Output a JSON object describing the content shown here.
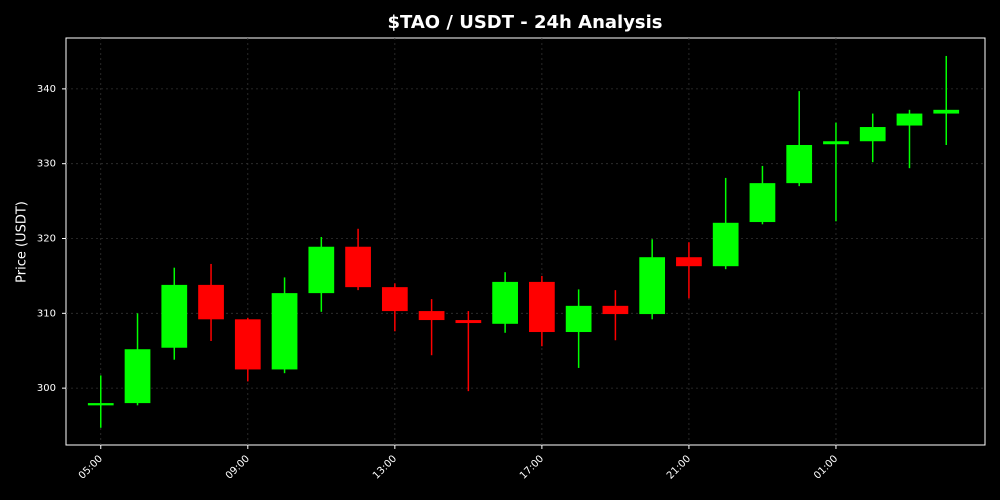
{
  "chart_data": {
    "type": "candlestick",
    "title": "$TAO / USDT - 24h Analysis",
    "y_label": "Price (USDT)",
    "categories": [
      "05:00",
      null,
      null,
      null,
      "09:00",
      null,
      null,
      null,
      "13:00",
      null,
      null,
      null,
      "17:00",
      null,
      null,
      null,
      "21:00",
      null,
      null,
      null,
      "01:00",
      null,
      null,
      null
    ],
    "open": [
      297.7,
      298.0,
      305.4,
      313.8,
      309.2,
      302.5,
      312.7,
      318.9,
      313.5,
      310.3,
      309.1,
      308.6,
      314.2,
      307.5,
      311.0,
      309.9,
      317.5,
      316.3,
      322.2,
      327.4,
      332.6,
      333.0,
      335.1,
      336.7
    ],
    "high": [
      301.7,
      310.0,
      316.1,
      316.6,
      309.4,
      314.8,
      320.2,
      321.3,
      314.0,
      311.9,
      310.3,
      315.5,
      315.0,
      313.2,
      313.1,
      319.9,
      319.5,
      328.1,
      329.7,
      339.7,
      335.5,
      336.7,
      337.2,
      344.4
    ],
    "low": [
      294.7,
      297.7,
      303.8,
      306.3,
      300.9,
      302.0,
      310.2,
      313.1,
      307.6,
      304.4,
      299.6,
      307.4,
      305.6,
      302.7,
      306.4,
      309.2,
      312.0,
      315.9,
      321.9,
      327.0,
      322.3,
      330.2,
      329.4,
      332.5
    ],
    "close": [
      298.0,
      305.2,
      313.8,
      309.2,
      302.5,
      312.7,
      318.9,
      313.5,
      310.3,
      309.1,
      308.7,
      314.2,
      307.5,
      311.0,
      309.9,
      317.5,
      316.3,
      322.1,
      327.4,
      332.5,
      333.0,
      334.9,
      336.7,
      337.2
    ],
    "up_color": "#00ff00",
    "down_color": "#ff0000",
    "ylim": [
      292.4,
      346.8
    ],
    "yticks": [
      300,
      310,
      320,
      330,
      340
    ],
    "grid": true
  }
}
